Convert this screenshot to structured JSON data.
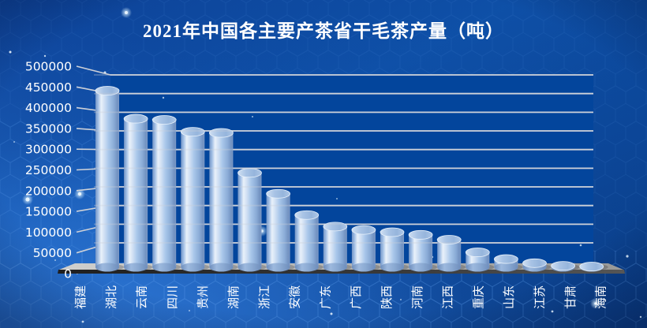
{
  "title": "2021年中国各主要产茶省干毛茶产量（吨）",
  "chart_data": {
    "type": "bar",
    "subtype": "3d-cylinder",
    "title": "2021年中国各主要产茶省干毛茶产量（吨）",
    "unit": "吨",
    "categories": [
      "福建",
      "湖北",
      "云南",
      "四川",
      "贵州",
      "湖南",
      "浙江",
      "安徽",
      "广东",
      "广西",
      "陕西",
      "河南",
      "江西",
      "重庆",
      "山东",
      "江苏",
      "甘肃",
      "海南"
    ],
    "values": [
      473000,
      398000,
      395000,
      363000,
      360000,
      253000,
      197000,
      140000,
      109000,
      100000,
      94000,
      87000,
      74000,
      40000,
      22000,
      11000,
      4000,
      2000
    ],
    "ylim": [
      0,
      500000
    ],
    "ytick_step": 50000,
    "yticks": [
      "500000",
      "450000",
      "400000",
      "350000",
      "300000",
      "250000",
      "200000",
      "150000",
      "100000",
      "50000",
      "0"
    ],
    "xlabel": "",
    "ylabel": "",
    "grid": "horizontal",
    "legend": "none"
  },
  "colors": {
    "background_blue": "#0d4a9e",
    "wall_blue": "#03459c",
    "gridline": "#ccd0d8",
    "bar_highlight": "#e9f1fa",
    "bar_mid": "#a9c7ea",
    "bar_dark": "#7494c4",
    "floor_top": "#b5b5b3",
    "floor_front": "#2e2e2e",
    "hexagon_line": "#5fa0ee",
    "text": "#ffffff"
  }
}
